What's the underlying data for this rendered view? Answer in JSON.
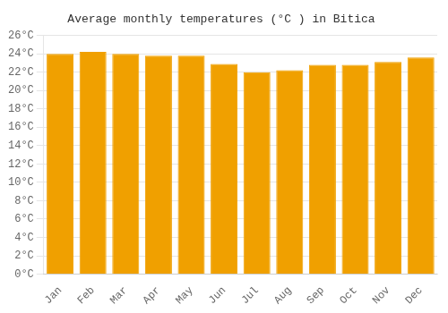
{
  "chart_data": {
    "type": "bar",
    "title": "Average monthly temperatures (°C ) in Bitica",
    "categories": [
      "Jan",
      "Feb",
      "Mar",
      "Apr",
      "May",
      "Jun",
      "Jul",
      "Aug",
      "Sep",
      "Oct",
      "Nov",
      "Dec"
    ],
    "values": [
      24.0,
      24.2,
      24.0,
      23.8,
      23.8,
      22.9,
      22.0,
      22.2,
      22.8,
      22.8,
      23.1,
      23.6
    ],
    "color": "#F0A000",
    "ylim": [
      0,
      26
    ],
    "yticks": [
      {
        "value": 0,
        "label": "0°C"
      },
      {
        "value": 2,
        "label": "2°C"
      },
      {
        "value": 4,
        "label": "4°C"
      },
      {
        "value": 6,
        "label": "6°C"
      },
      {
        "value": 8,
        "label": "8°C"
      },
      {
        "value": 10,
        "label": "10°C"
      },
      {
        "value": 12,
        "label": "12°C"
      },
      {
        "value": 14,
        "label": "14°C"
      },
      {
        "value": 16,
        "label": "16°C"
      },
      {
        "value": 18,
        "label": "18°C"
      },
      {
        "value": 20,
        "label": "20°C"
      },
      {
        "value": 22,
        "label": "22°C"
      },
      {
        "value": 24,
        "label": "24°C"
      },
      {
        "value": 26,
        "label": "26°C"
      }
    ],
    "grid": true
  }
}
